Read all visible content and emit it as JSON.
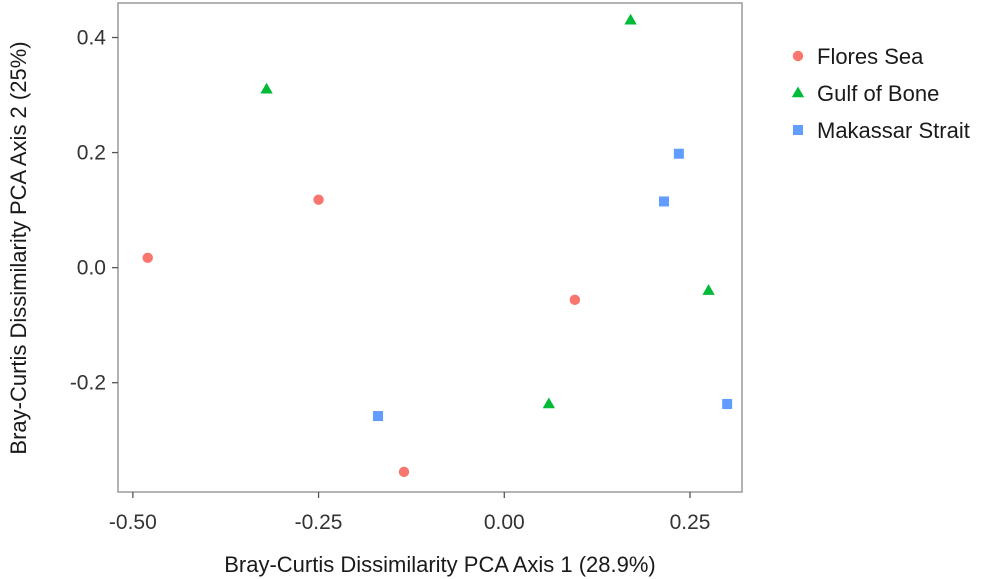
{
  "chart_data": {
    "type": "scatter",
    "xlabel": "Bray-Curtis Dissimilarity PCA Axis 1 (28.9%)",
    "ylabel": "Bray-Curtis Dissimilarity  PCA Axis 2 (25%)",
    "xlim": [
      -0.52,
      0.32
    ],
    "ylim": [
      -0.39,
      0.46
    ],
    "xticks": [
      -0.5,
      -0.25,
      0.0,
      0.25
    ],
    "xtick_labels": [
      "-0.50",
      "-0.25",
      "0.00",
      "0.25"
    ],
    "yticks": [
      -0.2,
      0.0,
      0.2,
      0.4
    ],
    "ytick_labels": [
      "-0.2",
      "0.0",
      "0.2",
      "0.4"
    ],
    "grid": false,
    "legend_position": "right",
    "series": [
      {
        "name": "Flores Sea",
        "marker": "circle",
        "color": "#f8766d",
        "points": [
          {
            "x": -0.48,
            "y": 0.017
          },
          {
            "x": -0.25,
            "y": 0.118
          },
          {
            "x": 0.095,
            "y": -0.056
          },
          {
            "x": -0.135,
            "y": -0.355
          }
        ]
      },
      {
        "name": "Gulf of Bone",
        "marker": "triangle",
        "color": "#00ba38",
        "points": [
          {
            "x": -0.32,
            "y": 0.31
          },
          {
            "x": 0.17,
            "y": 0.43
          },
          {
            "x": 0.275,
            "y": -0.04
          },
          {
            "x": 0.06,
            "y": -0.237
          }
        ]
      },
      {
        "name": "Makassar Strait",
        "marker": "square",
        "color": "#619cff",
        "points": [
          {
            "x": 0.235,
            "y": 0.198
          },
          {
            "x": 0.215,
            "y": 0.115
          },
          {
            "x": -0.17,
            "y": -0.258
          },
          {
            "x": 0.3,
            "y": -0.237
          }
        ]
      }
    ]
  }
}
